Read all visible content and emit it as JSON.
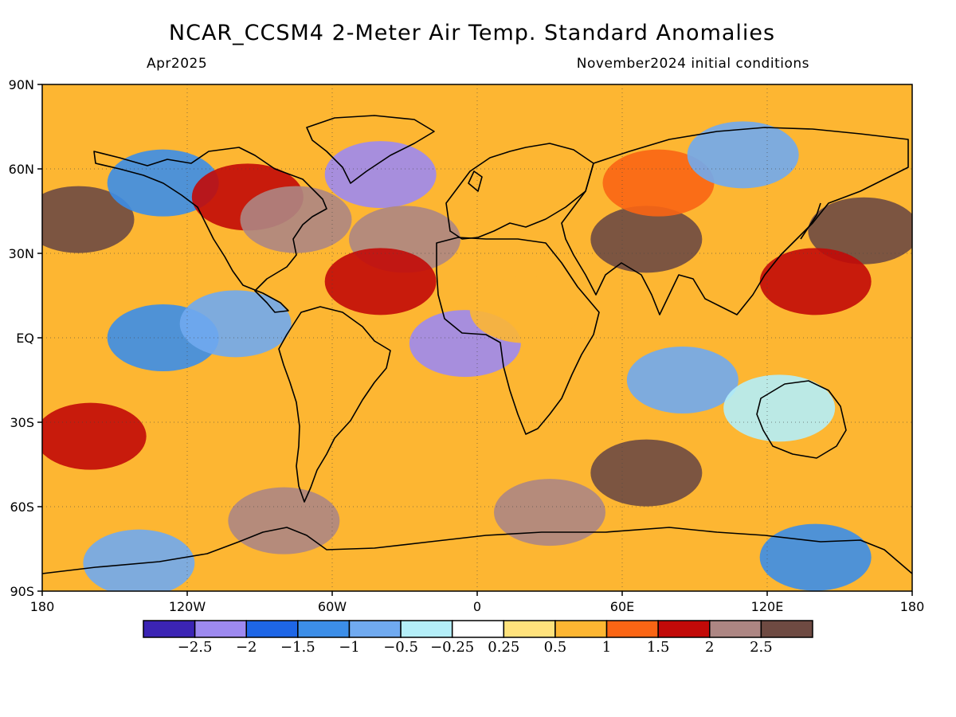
{
  "title": "NCAR_CCSM4 2-Meter Air Temp. Standard Anomalies",
  "subtitle_left": "Apr2025",
  "subtitle_right": "November2024 initial conditions",
  "map": {
    "projection": "equirectangular",
    "lon_range": [
      -180,
      180
    ],
    "lat_range": [
      -90,
      90
    ],
    "x_ticks": [
      {
        "lon": -180,
        "label": "180"
      },
      {
        "lon": -120,
        "label": "120W"
      },
      {
        "lon": -60,
        "label": "60W"
      },
      {
        "lon": 0,
        "label": "0"
      },
      {
        "lon": 60,
        "label": "60E"
      },
      {
        "lon": 120,
        "label": "120E"
      },
      {
        "lon": 180,
        "label": "180"
      }
    ],
    "y_ticks": [
      {
        "lat": 90,
        "label": "90N"
      },
      {
        "lat": 60,
        "label": "60N"
      },
      {
        "lat": 30,
        "label": "30N"
      },
      {
        "lat": 0,
        "label": "EQ"
      },
      {
        "lat": -30,
        "label": "30S"
      },
      {
        "lat": -60,
        "label": "60S"
      },
      {
        "lat": -90,
        "label": "90S"
      }
    ],
    "gridlines": "dotted"
  },
  "colorbar": {
    "colors": [
      "#3b24b4",
      "#9d89f0",
      "#1e66e6",
      "#3c8ee8",
      "#70aaf0",
      "#b4eef8",
      "#ffffff",
      "#ffe27c",
      "#fdb632",
      "#fa6514",
      "#c20a08",
      "#ad8683",
      "#6e4a42"
    ],
    "labels": [
      "-2.5",
      "-2",
      "-1.5",
      "-1",
      "-0.5",
      "-0.25",
      "0.25",
      "0.5",
      "1",
      "1.5",
      "2",
      "2.5"
    ]
  },
  "anomaly_regions": [
    {
      "lon": -165,
      "lat": 42,
      "value": 2.6
    },
    {
      "lon": -130,
      "lat": 55,
      "value": -1.2
    },
    {
      "lon": -95,
      "lat": 50,
      "value": 1.6
    },
    {
      "lon": -75,
      "lat": 42,
      "value": 2.0
    },
    {
      "lon": -40,
      "lat": 58,
      "value": -2.2
    },
    {
      "lon": -30,
      "lat": 35,
      "value": 2.4
    },
    {
      "lon": -40,
      "lat": 20,
      "value": 1.8
    },
    {
      "lon": -130,
      "lat": 0,
      "value": -1.3
    },
    {
      "lon": -100,
      "lat": 5,
      "value": -1.0
    },
    {
      "lon": -5,
      "lat": -2,
      "value": -2.4
    },
    {
      "lon": 20,
      "lat": 10,
      "value": 0.8
    },
    {
      "lon": 70,
      "lat": 35,
      "value": 2.6
    },
    {
      "lon": 75,
      "lat": 55,
      "value": 1.0
    },
    {
      "lon": 110,
      "lat": 65,
      "value": -0.8
    },
    {
      "lon": 160,
      "lat": 38,
      "value": 2.6
    },
    {
      "lon": 140,
      "lat": 20,
      "value": 1.8
    },
    {
      "lon": 85,
      "lat": -15,
      "value": -1.0
    },
    {
      "lon": 125,
      "lat": -25,
      "value": -0.5
    },
    {
      "lon": 70,
      "lat": -48,
      "value": 2.6
    },
    {
      "lon": -160,
      "lat": -35,
      "value": 1.8
    },
    {
      "lon": -80,
      "lat": -65,
      "value": 2.2
    },
    {
      "lon": 30,
      "lat": -62,
      "value": 2.4
    },
    {
      "lon": -140,
      "lat": -80,
      "value": -1.0
    },
    {
      "lon": 140,
      "lat": -78,
      "value": -1.3
    }
  ]
}
